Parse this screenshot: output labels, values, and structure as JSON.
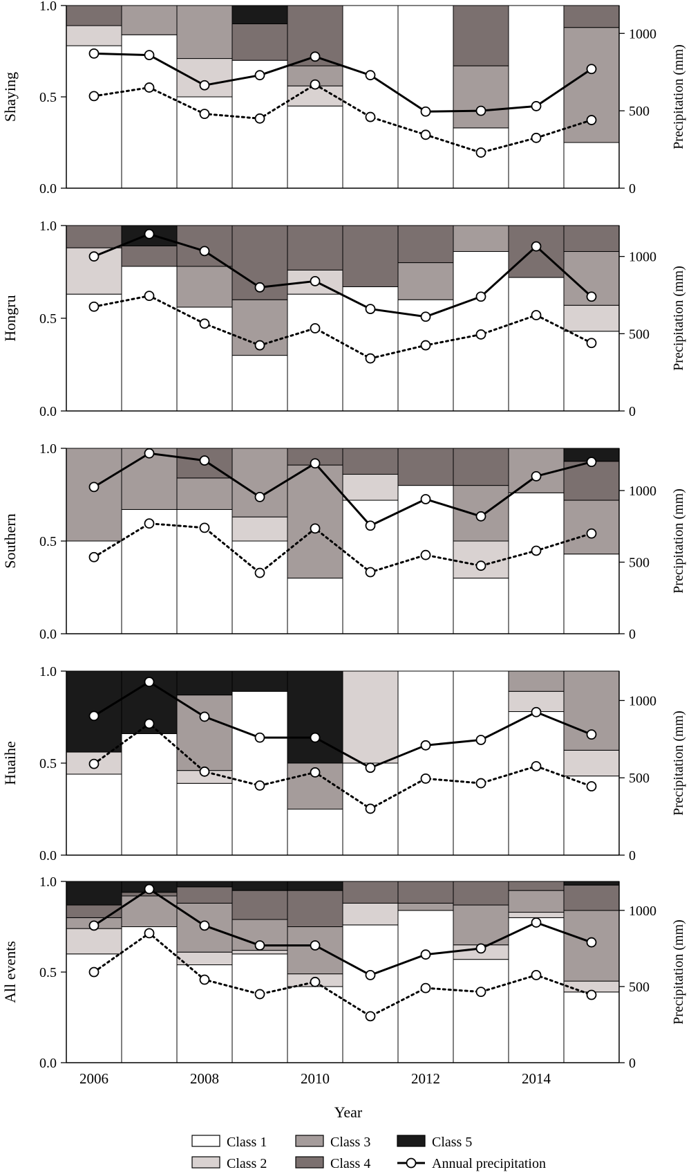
{
  "figure": {
    "xlabel": "Year",
    "right_axis_label": "Precipitation (mm)",
    "x_ticks": [
      "2006",
      "2008",
      "2010",
      "2012",
      "2014"
    ],
    "years": [
      2006,
      2007,
      2008,
      2009,
      2010,
      2011,
      2012,
      2013,
      2014,
      2015
    ]
  },
  "legend": {
    "items": [
      {
        "label": "Class 1",
        "kind": "swatch",
        "color": "#ffffff"
      },
      {
        "label": "Class 2",
        "kind": "swatch",
        "color": "#d9d2d1"
      },
      {
        "label": "Class 3",
        "kind": "swatch",
        "color": "#a59c9b"
      },
      {
        "label": "Class 4",
        "kind": "swatch",
        "color": "#7b706f"
      },
      {
        "label": "Class 5",
        "kind": "swatch",
        "color": "#1a1a1a"
      },
      {
        "label": "Annual precipitation",
        "kind": "line"
      }
    ]
  },
  "chart_data": [
    {
      "type": "bar",
      "ylabel": "Shaying",
      "y_ticks": [
        "0.0",
        "0.5",
        "1.0"
      ],
      "ylim": [
        0,
        1
      ],
      "y2_ticks": [
        "0",
        "500",
        "1000"
      ],
      "y2lim": [
        0,
        1180
      ],
      "categories": [
        "2006",
        "2007",
        "2008",
        "2009",
        "2010",
        "2011",
        "2012",
        "2013",
        "2014",
        "2015"
      ],
      "series": [
        {
          "name": "Class 1",
          "values": [
            0.78,
            0.84,
            0.5,
            0.7,
            0.45,
            1.0,
            1.0,
            0.33,
            1.0,
            0.25
          ]
        },
        {
          "name": "Class 2",
          "values": [
            0.11,
            0.0,
            0.21,
            0.0,
            0.11,
            0.0,
            0.0,
            0.0,
            0.0,
            0.0
          ]
        },
        {
          "name": "Class 3",
          "values": [
            0.0,
            0.16,
            0.29,
            0.0,
            0.11,
            0.0,
            0.0,
            0.34,
            0.0,
            0.63
          ]
        },
        {
          "name": "Class 4",
          "values": [
            0.11,
            0.0,
            0.0,
            0.2,
            0.33,
            0.0,
            0.0,
            0.33,
            0.0,
            0.12
          ]
        },
        {
          "name": "Class 5",
          "values": [
            0.0,
            0.0,
            0.0,
            0.1,
            0.0,
            0.0,
            0.0,
            0.0,
            0.0,
            0.0
          ]
        }
      ],
      "precip_solid": [
        870,
        860,
        665,
        730,
        850,
        730,
        495,
        500,
        530,
        770
      ],
      "precip_dotted": [
        595,
        650,
        480,
        450,
        670,
        460,
        345,
        230,
        325,
        440
      ]
    },
    {
      "type": "bar",
      "ylabel": "Hongru",
      "y_ticks": [
        "0.0",
        "0.5",
        "1.0"
      ],
      "ylim": [
        0,
        1
      ],
      "y2_ticks": [
        "0",
        "500",
        "1000"
      ],
      "y2lim": [
        0,
        1200
      ],
      "categories": [
        "2006",
        "2007",
        "2008",
        "2009",
        "2010",
        "2011",
        "2012",
        "2013",
        "2014",
        "2015"
      ],
      "series": [
        {
          "name": "Class 1",
          "values": [
            0.63,
            0.78,
            0.56,
            0.3,
            0.63,
            0.67,
            0.6,
            0.86,
            0.72,
            0.43
          ]
        },
        {
          "name": "Class 2",
          "values": [
            0.25,
            0.0,
            0.0,
            0.0,
            0.13,
            0.0,
            0.0,
            0.0,
            0.0,
            0.14
          ]
        },
        {
          "name": "Class 3",
          "values": [
            0.0,
            0.0,
            0.22,
            0.3,
            0.0,
            0.0,
            0.2,
            0.14,
            0.0,
            0.29
          ]
        },
        {
          "name": "Class 4",
          "values": [
            0.12,
            0.11,
            0.22,
            0.4,
            0.24,
            0.33,
            0.2,
            0.0,
            0.28,
            0.14
          ]
        },
        {
          "name": "Class 5",
          "values": [
            0.0,
            0.11,
            0.0,
            0.0,
            0.0,
            0.0,
            0.0,
            0.0,
            0.0,
            0.0
          ]
        }
      ],
      "precip_solid": [
        1000,
        1145,
        1035,
        800,
        840,
        660,
        610,
        740,
        1065,
        740
      ],
      "precip_dotted": [
        675,
        745,
        565,
        425,
        535,
        340,
        425,
        495,
        620,
        440
      ]
    },
    {
      "type": "bar",
      "ylabel": "Southern",
      "y_ticks": [
        "0.0",
        "0.5",
        "1.0"
      ],
      "ylim": [
        0,
        1
      ],
      "y2_ticks": [
        "0",
        "500",
        "1000"
      ],
      "y2lim": [
        0,
        1295
      ],
      "categories": [
        "2006",
        "2007",
        "2008",
        "2009",
        "2010",
        "2011",
        "2012",
        "2013",
        "2014",
        "2015"
      ],
      "series": [
        {
          "name": "Class 1",
          "values": [
            0.5,
            0.67,
            0.67,
            0.5,
            0.3,
            0.72,
            0.8,
            0.3,
            0.76,
            0.43
          ]
        },
        {
          "name": "Class 2",
          "values": [
            0.0,
            0.0,
            0.0,
            0.13,
            0.0,
            0.14,
            0.0,
            0.2,
            0.0,
            0.0
          ]
        },
        {
          "name": "Class 3",
          "values": [
            0.5,
            0.33,
            0.17,
            0.37,
            0.61,
            0.0,
            0.0,
            0.3,
            0.24,
            0.29
          ]
        },
        {
          "name": "Class 4",
          "values": [
            0.0,
            0.0,
            0.16,
            0.0,
            0.09,
            0.14,
            0.2,
            0.2,
            0.0,
            0.21
          ]
        },
        {
          "name": "Class 5",
          "values": [
            0.0,
            0.0,
            0.0,
            0.0,
            0.0,
            0.0,
            0.0,
            0.0,
            0.0,
            0.07
          ]
        }
      ],
      "precip_solid": [
        1025,
        1260,
        1210,
        955,
        1190,
        755,
        940,
        820,
        1100,
        1200
      ],
      "precip_dotted": [
        535,
        770,
        740,
        425,
        735,
        430,
        550,
        475,
        580,
        700
      ]
    },
    {
      "type": "bar",
      "ylabel": "Huaihe",
      "y_ticks": [
        "0.0",
        "0.5",
        "1.0"
      ],
      "ylim": [
        0,
        1
      ],
      "y2_ticks": [
        "0",
        "500",
        "1000"
      ],
      "y2lim": [
        0,
        1190
      ],
      "categories": [
        "2006",
        "2007",
        "2008",
        "2009",
        "2010",
        "2011",
        "2012",
        "2013",
        "2014",
        "2015"
      ],
      "series": [
        {
          "name": "Class 1",
          "values": [
            0.44,
            0.66,
            0.39,
            0.89,
            0.25,
            0.5,
            1.0,
            1.0,
            0.78,
            0.43
          ]
        },
        {
          "name": "Class 2",
          "values": [
            0.12,
            0.0,
            0.07,
            0.0,
            0.0,
            0.5,
            0.0,
            0.0,
            0.11,
            0.14
          ]
        },
        {
          "name": "Class 3",
          "values": [
            0.0,
            0.0,
            0.41,
            0.0,
            0.25,
            0.0,
            0.0,
            0.0,
            0.11,
            0.43
          ]
        },
        {
          "name": "Class 4",
          "values": [
            0.0,
            0.0,
            0.0,
            0.0,
            0.0,
            0.0,
            0.0,
            0.0,
            0.0,
            0.0
          ]
        },
        {
          "name": "Class 5",
          "values": [
            0.44,
            0.34,
            0.13,
            0.11,
            0.5,
            0.0,
            0.0,
            0.0,
            0.0,
            0.0
          ]
        }
      ],
      "precip_solid": [
        900,
        1120,
        895,
        760,
        760,
        565,
        710,
        745,
        925,
        780
      ],
      "precip_dotted": [
        590,
        850,
        540,
        450,
        535,
        300,
        495,
        465,
        575,
        445
      ]
    },
    {
      "type": "bar",
      "ylabel": "All events",
      "y_ticks": [
        "0.0",
        "0.5",
        "1.0"
      ],
      "ylim": [
        0,
        1
      ],
      "y2_ticks": [
        "0",
        "500",
        "1000"
      ],
      "y2lim": [
        0,
        1190
      ],
      "categories": [
        "2006",
        "2007",
        "2008",
        "2009",
        "2010",
        "2011",
        "2012",
        "2013",
        "2014",
        "2015"
      ],
      "series": [
        {
          "name": "Class 1",
          "values": [
            0.6,
            0.75,
            0.54,
            0.6,
            0.42,
            0.76,
            0.84,
            0.57,
            0.8,
            0.39
          ]
        },
        {
          "name": "Class 2",
          "values": [
            0.14,
            0.0,
            0.07,
            0.02,
            0.07,
            0.12,
            0.0,
            0.08,
            0.03,
            0.06
          ]
        },
        {
          "name": "Class 3",
          "values": [
            0.06,
            0.17,
            0.27,
            0.17,
            0.26,
            0.0,
            0.04,
            0.22,
            0.12,
            0.39
          ]
        },
        {
          "name": "Class 4",
          "values": [
            0.07,
            0.02,
            0.09,
            0.16,
            0.2,
            0.12,
            0.12,
            0.13,
            0.06,
            0.14
          ]
        },
        {
          "name": "Class 5",
          "values": [
            0.13,
            0.06,
            0.03,
            0.05,
            0.05,
            0.0,
            0.0,
            0.0,
            0.0,
            0.02
          ]
        }
      ],
      "precip_solid": [
        900,
        1140,
        900,
        770,
        770,
        575,
        710,
        750,
        920,
        790
      ],
      "precip_dotted": [
        595,
        850,
        545,
        450,
        530,
        305,
        490,
        465,
        575,
        445
      ]
    }
  ]
}
